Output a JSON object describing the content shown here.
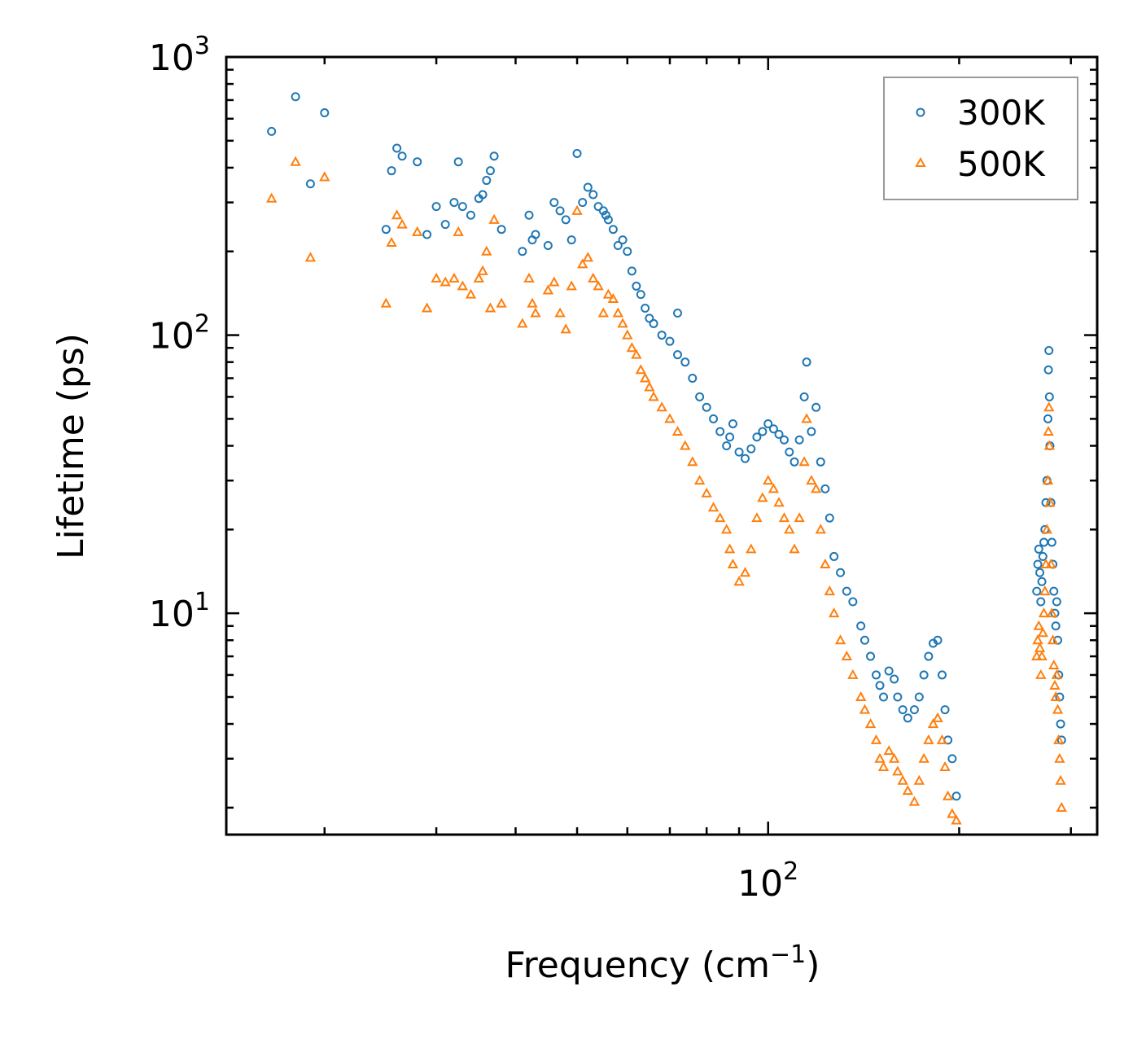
{
  "chart_data": {
    "type": "scatter",
    "title": "",
    "xlabel": "Frequency (cm",
    "xlabel_sup": "−1",
    "xlabel_end": ")",
    "ylabel": "Lifetime (ps)",
    "xscale": "log",
    "yscale": "log",
    "xlim": [
      14,
      330
    ],
    "ylim": [
      1.6,
      1000
    ],
    "xticks": [
      {
        "base": "10",
        "exp": "2",
        "value": 100
      }
    ],
    "yticks": [
      {
        "base": "10",
        "exp": "1",
        "value": 10
      },
      {
        "base": "10",
        "exp": "2",
        "value": 100
      },
      {
        "base": "10",
        "exp": "3",
        "value": 1000
      }
    ],
    "legend_position": "top-right",
    "series": [
      {
        "name": "300K",
        "marker": "circle",
        "color": "#1f77b4",
        "points": [
          [
            16.5,
            540
          ],
          [
            18,
            720
          ],
          [
            19,
            350
          ],
          [
            20,
            630
          ],
          [
            25,
            240
          ],
          [
            25.5,
            390
          ],
          [
            26,
            470
          ],
          [
            26.5,
            440
          ],
          [
            28,
            420
          ],
          [
            29,
            230
          ],
          [
            30,
            290
          ],
          [
            31,
            250
          ],
          [
            32,
            300
          ],
          [
            32.5,
            420
          ],
          [
            33,
            290
          ],
          [
            34,
            270
          ],
          [
            35,
            310
          ],
          [
            35.5,
            320
          ],
          [
            36,
            360
          ],
          [
            36.5,
            390
          ],
          [
            37,
            440
          ],
          [
            38,
            240
          ],
          [
            41,
            200
          ],
          [
            42,
            270
          ],
          [
            42.5,
            220
          ],
          [
            43,
            230
          ],
          [
            45,
            210
          ],
          [
            46,
            300
          ],
          [
            47,
            280
          ],
          [
            48,
            260
          ],
          [
            49,
            220
          ],
          [
            50,
            450
          ],
          [
            51,
            300
          ],
          [
            52,
            340
          ],
          [
            53,
            320
          ],
          [
            54,
            290
          ],
          [
            55,
            280
          ],
          [
            55.5,
            270
          ],
          [
            56,
            260
          ],
          [
            57,
            240
          ],
          [
            58,
            210
          ],
          [
            59,
            220
          ],
          [
            60,
            200
          ],
          [
            61,
            170
          ],
          [
            62,
            150
          ],
          [
            63,
            140
          ],
          [
            64,
            125
          ],
          [
            65,
            115
          ],
          [
            66,
            110
          ],
          [
            68,
            100
          ],
          [
            70,
            95
          ],
          [
            72,
            85
          ],
          [
            74,
            80
          ],
          [
            72,
            120
          ],
          [
            76,
            70
          ],
          [
            78,
            60
          ],
          [
            80,
            55
          ],
          [
            82,
            50
          ],
          [
            84,
            45
          ],
          [
            86,
            40
          ],
          [
            87,
            43
          ],
          [
            88,
            48
          ],
          [
            90,
            38
          ],
          [
            92,
            36
          ],
          [
            94,
            39
          ],
          [
            96,
            43
          ],
          [
            98,
            45
          ],
          [
            100,
            48
          ],
          [
            102,
            46
          ],
          [
            104,
            44
          ],
          [
            106,
            42
          ],
          [
            108,
            38
          ],
          [
            110,
            35
          ],
          [
            112,
            42
          ],
          [
            114,
            60
          ],
          [
            115,
            80
          ],
          [
            117,
            45
          ],
          [
            119,
            55
          ],
          [
            121,
            35
          ],
          [
            123,
            28
          ],
          [
            125,
            22
          ],
          [
            127,
            16
          ],
          [
            130,
            14
          ],
          [
            133,
            12
          ],
          [
            136,
            11
          ],
          [
            140,
            9
          ],
          [
            142,
            8
          ],
          [
            145,
            7
          ],
          [
            148,
            6
          ],
          [
            150,
            5.5
          ],
          [
            152,
            5
          ],
          [
            155,
            6.2
          ],
          [
            158,
            5.8
          ],
          [
            160,
            5
          ],
          [
            163,
            4.5
          ],
          [
            166,
            4.2
          ],
          [
            170,
            4.5
          ],
          [
            173,
            5
          ],
          [
            176,
            6
          ],
          [
            179,
            7
          ],
          [
            182,
            7.8
          ],
          [
            185,
            8
          ],
          [
            188,
            6
          ],
          [
            190,
            4.5
          ],
          [
            192,
            3.5
          ],
          [
            195,
            3
          ],
          [
            198,
            2.2
          ],
          [
            265,
            12
          ],
          [
            266,
            15
          ],
          [
            267,
            17
          ],
          [
            268,
            14
          ],
          [
            269,
            11
          ],
          [
            270,
            13
          ],
          [
            271,
            16
          ],
          [
            272,
            18
          ],
          [
            273,
            20
          ],
          [
            274,
            25
          ],
          [
            275,
            30
          ],
          [
            276,
            50
          ],
          [
            276.5,
            75
          ],
          [
            277,
            88
          ],
          [
            277.5,
            60
          ],
          [
            278,
            40
          ],
          [
            279,
            25
          ],
          [
            280,
            18
          ],
          [
            281,
            15
          ],
          [
            282,
            12
          ],
          [
            283,
            10
          ],
          [
            284,
            9
          ],
          [
            285,
            11
          ],
          [
            286,
            8
          ],
          [
            287,
            6
          ],
          [
            288,
            5
          ],
          [
            289,
            4
          ],
          [
            290,
            3.5
          ]
        ]
      },
      {
        "name": "500K",
        "marker": "triangle",
        "color": "#ff7f0e",
        "points": [
          [
            16.5,
            310
          ],
          [
            18,
            420
          ],
          [
            19,
            190
          ],
          [
            20,
            370
          ],
          [
            25,
            130
          ],
          [
            25.5,
            215
          ],
          [
            26,
            270
          ],
          [
            26.5,
            250
          ],
          [
            28,
            235
          ],
          [
            29,
            125
          ],
          [
            30,
            160
          ],
          [
            31,
            155
          ],
          [
            32,
            160
          ],
          [
            32.5,
            235
          ],
          [
            33,
            150
          ],
          [
            34,
            140
          ],
          [
            35,
            160
          ],
          [
            35.5,
            170
          ],
          [
            36,
            200
          ],
          [
            36.5,
            125
          ],
          [
            37,
            260
          ],
          [
            38,
            130
          ],
          [
            41,
            110
          ],
          [
            42,
            160
          ],
          [
            42.5,
            130
          ],
          [
            43,
            120
          ],
          [
            45,
            145
          ],
          [
            46,
            155
          ],
          [
            47,
            120
          ],
          [
            48,
            105
          ],
          [
            49,
            150
          ],
          [
            50,
            280
          ],
          [
            51,
            180
          ],
          [
            52,
            190
          ],
          [
            53,
            160
          ],
          [
            54,
            150
          ],
          [
            55,
            120
          ],
          [
            56,
            140
          ],
          [
            57,
            135
          ],
          [
            58,
            120
          ],
          [
            59,
            110
          ],
          [
            60,
            100
          ],
          [
            61,
            90
          ],
          [
            62,
            85
          ],
          [
            63,
            75
          ],
          [
            64,
            70
          ],
          [
            65,
            65
          ],
          [
            66,
            60
          ],
          [
            68,
            55
          ],
          [
            70,
            50
          ],
          [
            72,
            45
          ],
          [
            74,
            40
          ],
          [
            76,
            35
          ],
          [
            78,
            30
          ],
          [
            80,
            27
          ],
          [
            82,
            24
          ],
          [
            84,
            22
          ],
          [
            86,
            20
          ],
          [
            87,
            17
          ],
          [
            88,
            15
          ],
          [
            90,
            13
          ],
          [
            92,
            14
          ],
          [
            94,
            17
          ],
          [
            96,
            22
          ],
          [
            98,
            26
          ],
          [
            100,
            30
          ],
          [
            102,
            28
          ],
          [
            104,
            25
          ],
          [
            106,
            22
          ],
          [
            108,
            20
          ],
          [
            110,
            17
          ],
          [
            112,
            22
          ],
          [
            114,
            35
          ],
          [
            115,
            50
          ],
          [
            117,
            30
          ],
          [
            119,
            28
          ],
          [
            121,
            20
          ],
          [
            123,
            15
          ],
          [
            125,
            12
          ],
          [
            127,
            10
          ],
          [
            130,
            8
          ],
          [
            133,
            7
          ],
          [
            136,
            6
          ],
          [
            140,
            5
          ],
          [
            142,
            4.5
          ],
          [
            145,
            4
          ],
          [
            148,
            3.5
          ],
          [
            150,
            3
          ],
          [
            152,
            2.8
          ],
          [
            155,
            3.2
          ],
          [
            158,
            3
          ],
          [
            160,
            2.7
          ],
          [
            163,
            2.5
          ],
          [
            166,
            2.3
          ],
          [
            170,
            2.1
          ],
          [
            173,
            2.5
          ],
          [
            176,
            3
          ],
          [
            179,
            3.5
          ],
          [
            182,
            4
          ],
          [
            185,
            4.2
          ],
          [
            188,
            3.5
          ],
          [
            190,
            2.8
          ],
          [
            192,
            2.2
          ],
          [
            195,
            1.9
          ],
          [
            198,
            1.8
          ],
          [
            265,
            7
          ],
          [
            266,
            8
          ],
          [
            267,
            9
          ],
          [
            268,
            7.5
          ],
          [
            269,
            6
          ],
          [
            270,
            7
          ],
          [
            271,
            8.5
          ],
          [
            272,
            10
          ],
          [
            273,
            12
          ],
          [
            274,
            15
          ],
          [
            275,
            20
          ],
          [
            276,
            30
          ],
          [
            276.5,
            45
          ],
          [
            277,
            55
          ],
          [
            277.5,
            40
          ],
          [
            278,
            25
          ],
          [
            279,
            15
          ],
          [
            280,
            10
          ],
          [
            281,
            8
          ],
          [
            282,
            6.5
          ],
          [
            283,
            5.5
          ],
          [
            284,
            5
          ],
          [
            285,
            6
          ],
          [
            286,
            4.5
          ],
          [
            287,
            3.5
          ],
          [
            288,
            3
          ],
          [
            289,
            2.5
          ],
          [
            290,
            2
          ]
        ]
      }
    ]
  }
}
